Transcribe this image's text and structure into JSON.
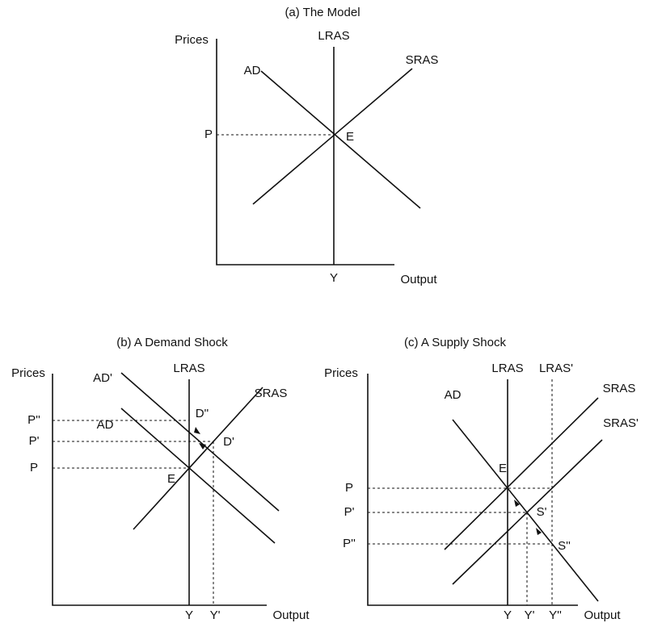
{
  "panels": [
    {
      "title": "(a) The Model",
      "y_axis_label": "Prices",
      "x_axis_label": "Output",
      "curves": [
        "LRAS",
        "AD",
        "SRAS"
      ],
      "points": [
        "E"
      ],
      "price_levels": [
        "P"
      ],
      "output_levels": [
        "Y"
      ]
    },
    {
      "title": "(b) A Demand Shock",
      "y_axis_label": "Prices",
      "x_axis_label": "Output",
      "curves": [
        "LRAS",
        "AD'",
        "AD",
        "SRAS"
      ],
      "points": [
        "E",
        "D''",
        "D'"
      ],
      "price_levels": [
        "P''",
        "P'",
        "P"
      ],
      "output_levels": [
        "Y",
        "Y'"
      ]
    },
    {
      "title": "(c) A Supply Shock",
      "y_axis_label": "Prices",
      "x_axis_label": "Output",
      "curves": [
        "LRAS",
        "LRAS'",
        "AD",
        "SRAS",
        "SRAS'"
      ],
      "points": [
        "E",
        "S'",
        "S''"
      ],
      "price_levels": [
        "P",
        "P'",
        "P''"
      ],
      "output_levels": [
        "Y",
        "Y'",
        "Y''"
      ]
    }
  ]
}
